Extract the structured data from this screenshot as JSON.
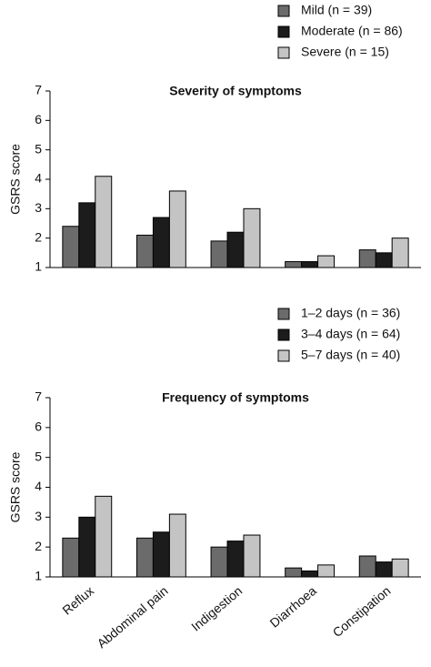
{
  "chart_data": [
    {
      "type": "bar",
      "title": "Severity of symptoms",
      "y_label": "GSRS score",
      "categories": [
        null,
        null,
        null,
        null,
        null
      ],
      "series": [
        {
          "name": "Mild (n = 39)",
          "color": "#6b6b6b",
          "values": [
            2.4,
            2.1,
            1.9,
            1.2,
            1.6
          ]
        },
        {
          "name": "Moderate (n = 86)",
          "color": "#1c1c1c",
          "values": [
            3.2,
            2.7,
            2.2,
            1.2,
            1.5
          ]
        },
        {
          "name": "Severe (n = 15)",
          "color": "#c4c4c4",
          "values": [
            4.1,
            3.6,
            3.0,
            1.4,
            2.0
          ]
        }
      ],
      "ylim": [
        1,
        7
      ],
      "yticks": [
        1,
        2,
        3,
        4,
        5,
        6,
        7
      ],
      "legend": "top-right"
    },
    {
      "type": "bar",
      "title": "Frequency of symptoms",
      "y_label": "GSRS score",
      "categories": [
        "Reflux",
        "Abdominal pain",
        "Indigestion",
        "Diarrhoea",
        "Constipation"
      ],
      "series": [
        {
          "name": "1–2 days (n = 36)",
          "color": "#6b6b6b",
          "values": [
            2.3,
            2.3,
            2.0,
            1.3,
            1.7
          ]
        },
        {
          "name": "3–4 days (n = 64)",
          "color": "#1c1c1c",
          "values": [
            3.0,
            2.5,
            2.2,
            1.2,
            1.5
          ]
        },
        {
          "name": "5–7 days (n = 40)",
          "color": "#c4c4c4",
          "values": [
            3.7,
            3.1,
            2.4,
            1.4,
            1.6
          ]
        }
      ],
      "ylim": [
        1,
        7
      ],
      "yticks": [
        1,
        2,
        3,
        4,
        5,
        6,
        7
      ],
      "legend": "top-right"
    }
  ]
}
